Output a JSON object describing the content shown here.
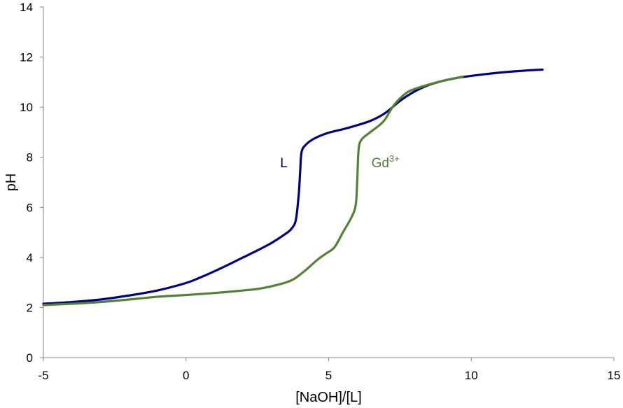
{
  "chart_data": {
    "type": "line",
    "xlabel": "[NaOH]/[L]",
    "ylabel": "pH",
    "xlim": [
      -5,
      15
    ],
    "ylim": [
      0,
      14
    ],
    "xticks": [
      "-5",
      "0",
      "5",
      "10",
      "15"
    ],
    "yticks": [
      "0",
      "2",
      "4",
      "6",
      "8",
      "10",
      "12",
      "14"
    ],
    "grid": false,
    "legend": "inline labels",
    "series": [
      {
        "name": "L",
        "color": "#000080",
        "label_parts": [
          "L"
        ],
        "label_at": [
          3.3,
          7.6
        ],
        "points": [
          [
            -5,
            2.15
          ],
          [
            -4,
            2.22
          ],
          [
            -3,
            2.32
          ],
          [
            -2,
            2.48
          ],
          [
            -1,
            2.68
          ],
          [
            0,
            2.98
          ],
          [
            0.5,
            3.2
          ],
          [
            1,
            3.45
          ],
          [
            1.5,
            3.72
          ],
          [
            2,
            4.0
          ],
          [
            2.5,
            4.28
          ],
          [
            3,
            4.58
          ],
          [
            3.5,
            4.95
          ],
          [
            3.7,
            5.15
          ],
          [
            3.85,
            5.5
          ],
          [
            3.95,
            6.5
          ],
          [
            4.0,
            7.4
          ],
          [
            4.05,
            8.2
          ],
          [
            4.2,
            8.5
          ],
          [
            4.5,
            8.75
          ],
          [
            5,
            8.98
          ],
          [
            5.5,
            9.12
          ],
          [
            6,
            9.28
          ],
          [
            6.5,
            9.47
          ],
          [
            7,
            9.78
          ],
          [
            7.5,
            10.25
          ],
          [
            8,
            10.62
          ],
          [
            8.5,
            10.88
          ],
          [
            9,
            11.05
          ],
          [
            9.5,
            11.17
          ],
          [
            10,
            11.25
          ],
          [
            10.5,
            11.32
          ],
          [
            11,
            11.38
          ],
          [
            11.5,
            11.43
          ],
          [
            12,
            11.47
          ],
          [
            12.5,
            11.5
          ]
        ]
      },
      {
        "name": "Gd3+",
        "color": "#548235",
        "label_parts": [
          "Gd",
          "3+"
        ],
        "label_at": [
          6.5,
          7.6
        ],
        "points": [
          [
            -5,
            2.1
          ],
          [
            -4,
            2.15
          ],
          [
            -3,
            2.22
          ],
          [
            -2,
            2.32
          ],
          [
            -1,
            2.43
          ],
          [
            0,
            2.5
          ],
          [
            1,
            2.58
          ],
          [
            2,
            2.68
          ],
          [
            2.5,
            2.74
          ],
          [
            3,
            2.85
          ],
          [
            3.5,
            3.0
          ],
          [
            3.8,
            3.15
          ],
          [
            4.2,
            3.5
          ],
          [
            4.6,
            3.9
          ],
          [
            4.9,
            4.15
          ],
          [
            5.2,
            4.4
          ],
          [
            5.5,
            5.0
          ],
          [
            5.8,
            5.6
          ],
          [
            5.95,
            6.1
          ],
          [
            6.0,
            7.0
          ],
          [
            6.05,
            8.3
          ],
          [
            6.15,
            8.7
          ],
          [
            6.4,
            8.95
          ],
          [
            6.8,
            9.3
          ],
          [
            7.0,
            9.55
          ],
          [
            7.3,
            10.1
          ],
          [
            7.7,
            10.55
          ],
          [
            8,
            10.72
          ],
          [
            8.5,
            10.9
          ],
          [
            9,
            11.05
          ],
          [
            9.5,
            11.17
          ],
          [
            9.7,
            11.22
          ]
        ]
      }
    ]
  }
}
